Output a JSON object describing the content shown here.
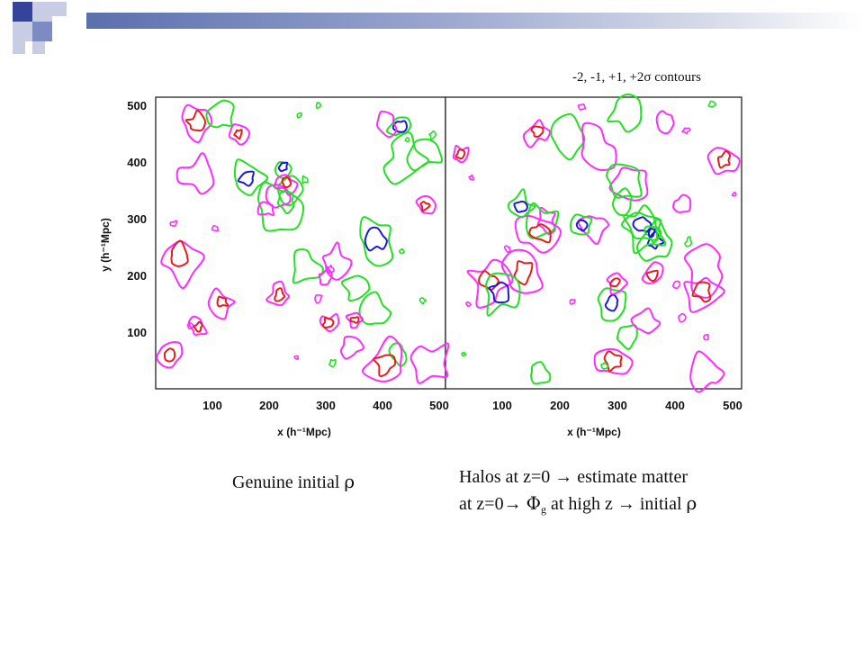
{
  "header": {
    "contour_note": "-2, -1, +1, +2σ contours"
  },
  "colors": {
    "accent_dark": "#33449a",
    "accent_mid": "#7d8bc4",
    "accent_light": "#c8cde3",
    "contour_minus2": "#1a1ad6",
    "contour_minus1": "#22e022",
    "contour_plus1": "#ff2cff",
    "contour_plus2": "#e81b1b"
  },
  "panels": [
    {
      "xlabel_prefix": "x",
      "xlabel_unit": "(h⁻¹Mpc)",
      "x_ticks": [
        "100",
        "200",
        "300",
        "400",
        "500"
      ],
      "y_ticks": [
        "500",
        "400",
        "300",
        "200",
        "100"
      ],
      "ylabel_prefix": "y",
      "ylabel_unit": "(h⁻¹Mpc)"
    },
    {
      "xlabel_prefix": "x",
      "xlabel_unit": "(h⁻¹Mpc)",
      "x_ticks": [
        "100",
        "200",
        "300",
        "400",
        "500"
      ]
    }
  ],
  "captions": {
    "left_text": "Genuine initial ",
    "left_symbol": "ρ",
    "right_line1": "Halos at z=0 → estimate matter",
    "right_line2_a": "at z=0→ ",
    "right_line2_phi": "Φ",
    "right_line2_sub": "g",
    "right_line2_b": " at high z → initial ",
    "right_line2_rho": "ρ"
  }
}
